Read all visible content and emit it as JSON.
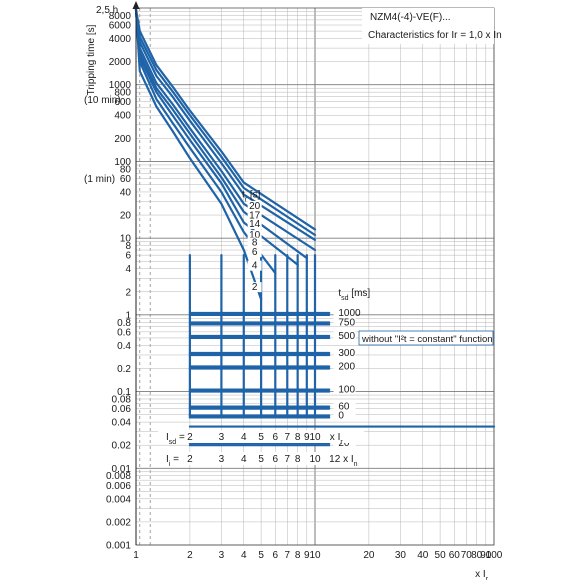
{
  "chart_data": {
    "type": "line",
    "title": "NZM4(-4)-VE(F)...",
    "subtitle": "Characteristics for I_r = 1,0 x I_n",
    "xlabel": "x I_r",
    "ylabel": "Tripping time [s]",
    "x_scale": "log",
    "y_scale": "log",
    "xlim": [
      1,
      100
    ],
    "ylim": [
      0.001,
      10000
    ],
    "x_ticks": [
      1,
      2,
      3,
      4,
      5,
      6,
      7,
      8,
      9,
      10,
      20,
      30,
      40,
      50,
      60,
      70,
      80,
      90,
      100
    ],
    "x_tick_labels": [
      "1",
      "2",
      "3",
      "4",
      "5",
      "6",
      "7",
      "8",
      "9",
      "10",
      "20",
      "30",
      "40",
      "50",
      "60",
      "70",
      "80",
      "90",
      "100"
    ],
    "y_ticks": [
      0.001,
      0.002,
      0.004,
      0.006,
      0.008,
      0.01,
      0.02,
      0.04,
      0.06,
      0.08,
      0.1,
      0.2,
      0.4,
      0.6,
      0.8,
      1,
      2,
      4,
      6,
      8,
      10,
      20,
      40,
      60,
      80,
      100,
      200,
      400,
      600,
      800,
      1000,
      2000,
      4000,
      6000,
      8000
    ],
    "y_tick_labels": [
      "0.001",
      "0.002",
      "0.004",
      "0.006",
      "0.008",
      "0.01",
      "0.02",
      "0.04",
      "0.06",
      "0.08",
      "0.1",
      "0.2",
      "0.4",
      "0.6",
      "0.8",
      "1",
      "2",
      "4",
      "6",
      "8",
      "10",
      "20",
      "40",
      "60",
      "80",
      "100",
      "200",
      "400",
      "600",
      "800",
      "1000",
      "2000",
      "4000",
      "6000",
      "8000"
    ],
    "y_side_labels": [
      "2,5 h",
      "(10 min)",
      "(1 min)"
    ],
    "grid": true,
    "tr_label": "t_r [s]",
    "tr_values": [
      "20",
      "17",
      "14",
      "10",
      "8",
      "6",
      "4",
      "2"
    ],
    "tsd_label": "t_sd [ms]",
    "tsd_values": [
      "1000",
      "750",
      "500",
      "300",
      "200",
      "100",
      "60",
      "20",
      "0"
    ],
    "annotation": "without \"I²t = constant\" function",
    "isd_label": "I_sd =",
    "isd_values": [
      "2",
      "3",
      "4",
      "5",
      "6",
      "7",
      "8",
      "9",
      "10"
    ],
    "isd_unit": "x I_r",
    "ii_label": "I_i =",
    "ii_values": [
      "2",
      "3",
      "4",
      "5",
      "6",
      "7",
      "8",
      "10"
    ],
    "ii_unit": "12 x I_n",
    "series": [
      {
        "name": "2",
        "x": [
          1.05,
          1.3,
          1.6,
          2,
          3,
          4,
          5
        ],
        "y": [
          1500,
          520,
          250,
          110,
          28,
          7,
          1.6
        ]
      },
      {
        "name": "4",
        "x": [
          1.05,
          1.3,
          1.6,
          2,
          3,
          4,
          6
        ],
        "y": [
          2000,
          650,
          320,
          150,
          40,
          12,
          3.5
        ]
      },
      {
        "name": "6",
        "x": [
          1.05,
          1.3,
          1.6,
          2,
          3,
          4,
          8
        ],
        "y": [
          2300,
          800,
          400,
          190,
          52,
          16,
          4.5
        ]
      },
      {
        "name": "8",
        "x": [
          1.05,
          1.3,
          1.6,
          2,
          3,
          4,
          9
        ],
        "y": [
          2600,
          900,
          480,
          230,
          62,
          22,
          5.5
        ]
      },
      {
        "name": "10",
        "x": [
          1.05,
          1.3,
          1.6,
          2,
          3,
          4,
          10
        ],
        "y": [
          3000,
          1050,
          560,
          270,
          75,
          28,
          7
        ]
      },
      {
        "name": "14",
        "x": [
          1.05,
          1.3,
          1.6,
          2,
          3,
          4,
          10
        ],
        "y": [
          3600,
          1300,
          700,
          340,
          95,
          37,
          9.5
        ]
      },
      {
        "name": "17",
        "x": [
          1.05,
          1.3,
          1.6,
          2,
          3,
          4,
          10
        ],
        "y": [
          4200,
          1550,
          820,
          400,
          115,
          45,
          11
        ]
      },
      {
        "name": "20",
        "x": [
          1.05,
          1.3,
          1.6,
          2,
          3,
          4,
          10
        ],
        "y": [
          5000,
          1800,
          950,
          460,
          135,
          53,
          13
        ]
      }
    ],
    "tsd_levels": [
      1.0,
      0.75,
      0.5,
      0.3,
      0.2,
      0.1,
      0.06,
      0.02,
      0.0
    ],
    "instantaneous_time": 0.035
  }
}
